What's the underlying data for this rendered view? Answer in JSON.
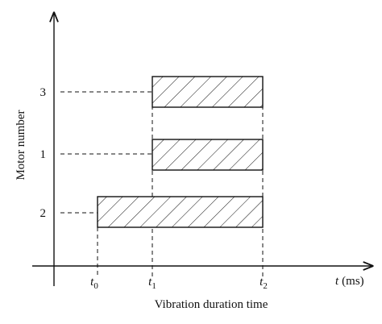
{
  "diagram": {
    "y_axis_label": "Motor number",
    "x_axis_label": "Vibration duration time",
    "x_axis_unit_label": {
      "symbol": "t",
      "unit": "(ms)"
    },
    "time_marks": [
      {
        "symbol": "t",
        "subscript": "0"
      },
      {
        "symbol": "t",
        "subscript": "1"
      },
      {
        "symbol": "t",
        "subscript": "2"
      }
    ],
    "motors": [
      "3",
      "1",
      "2"
    ]
  }
}
